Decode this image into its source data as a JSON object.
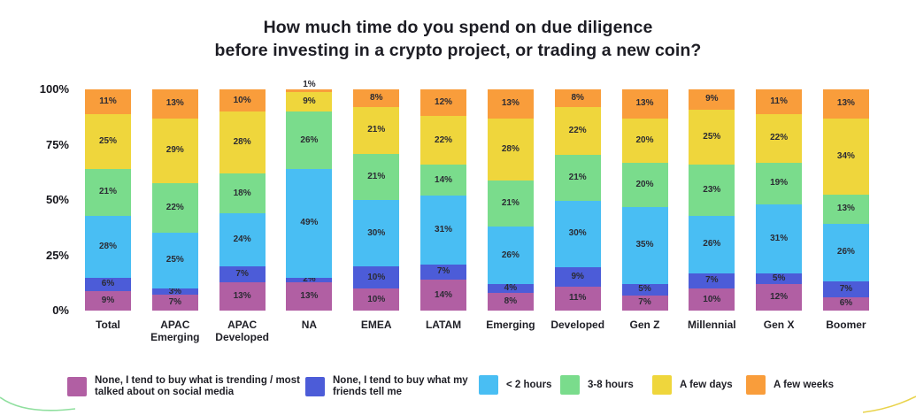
{
  "title": {
    "line1": "How much time do you spend on due diligence",
    "line2": "before investing in a crypto project, or trading a new coin?"
  },
  "chart_data": {
    "type": "bar",
    "stacked": true,
    "title": "How much time do you spend on due diligence before investing in a crypto project, or trading a new coin?",
    "categories": [
      "Total",
      "APAC Emerging",
      "APAC Developed",
      "NA",
      "EMEA",
      "LATAM",
      "Emerging",
      "Developed",
      "Gen Z",
      "Millennial",
      "Gen X",
      "Boomer"
    ],
    "series": [
      {
        "name": "None, I tend to buy what is trending / most talked about on social media",
        "color": "#B15FA3",
        "values": [
          9,
          7,
          13,
          13,
          10,
          14,
          8,
          11,
          7,
          10,
          12,
          6
        ]
      },
      {
        "name": "None, I tend to buy what my friends tell me",
        "color": "#4C5CD8",
        "values": [
          6,
          3,
          7,
          2,
          10,
          7,
          4,
          9,
          5,
          7,
          5,
          7
        ]
      },
      {
        "name": "< 2 hours",
        "color": "#49BEF3",
        "values": [
          28,
          25,
          24,
          49,
          30,
          31,
          26,
          30,
          35,
          26,
          31,
          26
        ]
      },
      {
        "name": "3-8 hours",
        "color": "#7ADC8C",
        "values": [
          21,
          22,
          18,
          26,
          21,
          14,
          21,
          21,
          20,
          23,
          19,
          13
        ]
      },
      {
        "name": "A few days",
        "color": "#EFD63C",
        "values": [
          25,
          29,
          28,
          9,
          21,
          22,
          28,
          22,
          20,
          25,
          22,
          34
        ]
      },
      {
        "name": "A few weeks",
        "color": "#F99D3B",
        "values": [
          11,
          13,
          10,
          1,
          8,
          12,
          13,
          8,
          13,
          9,
          11,
          13
        ]
      }
    ],
    "yticks": [
      "100%",
      "75%",
      "50%",
      "25%",
      "0%"
    ],
    "ylim": [
      0,
      100
    ],
    "value_suffix": "%",
    "value_labels": true,
    "grid": false,
    "legend_position": "bottom"
  }
}
